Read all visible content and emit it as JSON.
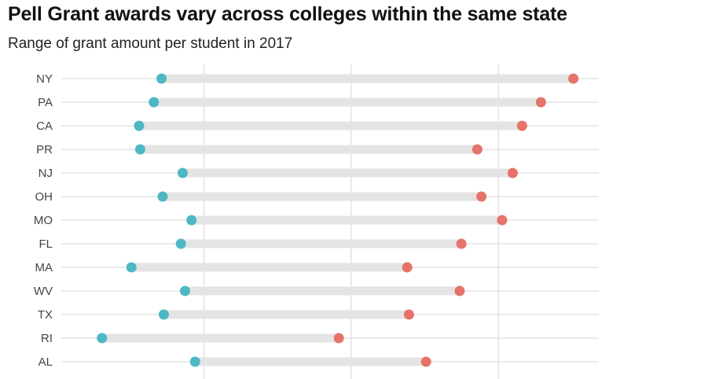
{
  "chart_data": {
    "type": "dumbbell",
    "title": "Pell Grant awards vary across colleges within the same state",
    "subtitle": "Range of grant amount per student in 2017",
    "categories": [
      "NY",
      "PA",
      "CA",
      "PR",
      "NJ",
      "OH",
      "MO",
      "FL",
      "MA",
      "WV",
      "TX",
      "RI",
      "AL"
    ],
    "series": [
      {
        "values": [
          1780,
          1650,
          1400,
          1420,
          2140,
          1800,
          2290,
          2110,
          1270,
          2180,
          1820,
          770,
          2350
        ]
      },
      {
        "values": [
          8770,
          8220,
          7900,
          7140,
          7740,
          7210,
          7560,
          6870,
          5950,
          6840,
          5980,
          4790,
          6270
        ]
      }
    ],
    "xlim": [
      0,
      9000
    ],
    "grid": true,
    "colors": {
      "low": "#4db8c3",
      "high": "#e5736a",
      "range_bar": "#e4e4e4",
      "gridline": "#e3e3e3"
    }
  }
}
